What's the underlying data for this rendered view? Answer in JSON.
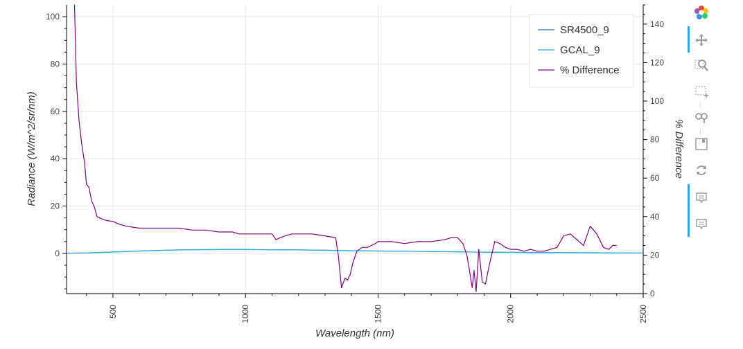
{
  "chart_data": {
    "type": "line",
    "x_label": "Wavelength (nm)",
    "y_label": "Radiance (W/m^2/sr/nm)",
    "y2_label": "% Difference",
    "xlim": [
      325,
      2500
    ],
    "ylim": [
      -17,
      105
    ],
    "y2lim": [
      0,
      150
    ],
    "x_ticks": [
      500,
      1000,
      1500,
      2000,
      2500
    ],
    "y_ticks": [
      0,
      20,
      40,
      60,
      80,
      100
    ],
    "y2_ticks": [
      0,
      20,
      40,
      60,
      80,
      100,
      120,
      140
    ],
    "grid": true,
    "legend_position": "top-right",
    "series": [
      {
        "name": "SR4500_9",
        "axis": "left",
        "color": "#1f77b4",
        "x": [
          325,
          400,
          500,
          600,
          700,
          800,
          900,
          1000,
          1100,
          1200,
          1300,
          1400,
          1500,
          1600,
          1700,
          1800,
          1900,
          2000,
          2100,
          2200,
          2300,
          2400,
          2500
        ],
        "y": [
          0.1,
          0.2,
          0.6,
          1.0,
          1.35,
          1.55,
          1.62,
          1.62,
          1.55,
          1.45,
          1.3,
          1.1,
          1.0,
          0.9,
          0.75,
          0.65,
          0.5,
          0.45,
          0.35,
          0.3,
          0.25,
          0.2,
          0.15
        ]
      },
      {
        "name": "GCAL_9",
        "axis": "left",
        "color": "#26aae1",
        "x": [
          325,
          400,
          500,
          600,
          700,
          800,
          900,
          1000,
          1100,
          1200,
          1300,
          1400,
          1500,
          1600,
          1700,
          1800,
          1900,
          2000,
          2100,
          2200,
          2300,
          2400,
          2500
        ],
        "y": [
          0.05,
          0.15,
          0.55,
          1.0,
          1.35,
          1.55,
          1.62,
          1.62,
          1.55,
          1.45,
          1.3,
          1.1,
          1.0,
          0.9,
          0.75,
          0.65,
          0.5,
          0.45,
          0.35,
          0.3,
          0.25,
          0.2,
          0.15
        ]
      },
      {
        "name": "% Difference",
        "axis": "right",
        "color": "#800080",
        "x": [
          355,
          362,
          372,
          382,
          393,
          400,
          410,
          420,
          430,
          440,
          455,
          475,
          500,
          525,
          550,
          600,
          650,
          700,
          750,
          800,
          850,
          900,
          950,
          975,
          1000,
          1050,
          1100,
          1115,
          1130,
          1150,
          1175,
          1200,
          1250,
          1300,
          1340,
          1350,
          1362,
          1375,
          1385,
          1395,
          1405,
          1420,
          1440,
          1460,
          1475,
          1490,
          1500,
          1550,
          1600,
          1650,
          1700,
          1750,
          1775,
          1800,
          1820,
          1835,
          1845,
          1855,
          1862,
          1870,
          1880,
          1893,
          1905,
          1920,
          1940,
          1960,
          1980,
          2000,
          2025,
          2050,
          2075,
          2100,
          2125,
          2150,
          2175,
          2200,
          2225,
          2250,
          2275,
          2300,
          2325,
          2350,
          2370,
          2385,
          2400
        ],
        "y": [
          150,
          110,
          90,
          78,
          68,
          57,
          55,
          48,
          45,
          40,
          39,
          38,
          37.5,
          36,
          35,
          34,
          34,
          34,
          34,
          33,
          33,
          32,
          32,
          31,
          31,
          31,
          31,
          28,
          29,
          30,
          31,
          31,
          31,
          30,
          29,
          20,
          3,
          8,
          7,
          10,
          16,
          22,
          24,
          24,
          25,
          26,
          27,
          27,
          26,
          27,
          27,
          28,
          29,
          29,
          26,
          20,
          12,
          3,
          12,
          1,
          23,
          6,
          5,
          15,
          27,
          26,
          24,
          23,
          23,
          22,
          23,
          22,
          22,
          23,
          24,
          30,
          31,
          28,
          25,
          35,
          31,
          24,
          23,
          25,
          25
        ]
      }
    ]
  },
  "legend": {
    "items": [
      {
        "label": "SR4500_9",
        "color": "#1f77b4"
      },
      {
        "label": "GCAL_9",
        "color": "#26aae1"
      },
      {
        "label": "% Difference",
        "color": "#800080"
      }
    ]
  },
  "toolbar": {
    "tools": [
      "bokeh-logo-icon",
      "pan-icon",
      "box-zoom-icon",
      "box-select-icon",
      "reset-zoom-icon",
      "save-icon",
      "reset-icon",
      "hover-icon",
      "hover-icon"
    ]
  }
}
